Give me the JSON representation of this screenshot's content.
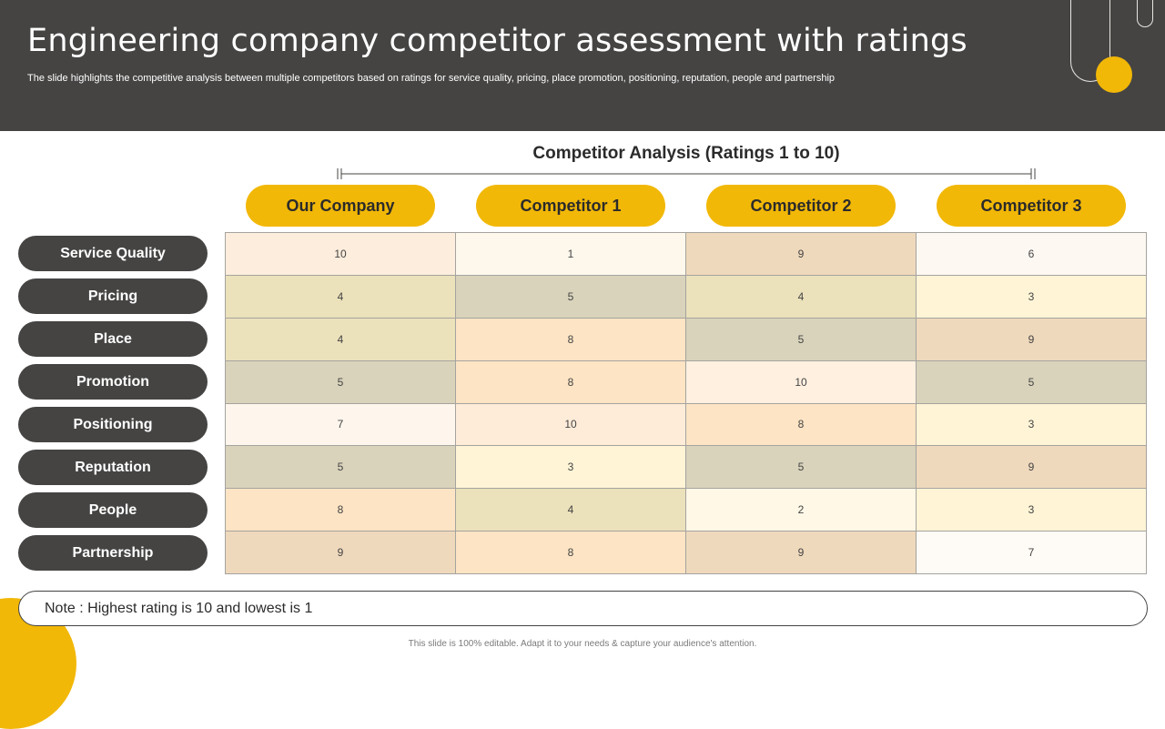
{
  "header": {
    "title": "Engineering company competitor assessment with ratings",
    "subtitle": "The slide highlights the competitive analysis between multiple competitors based on ratings for service quality, pricing, place promotion, positioning, reputation, people and partnership"
  },
  "analysis_title": "Competitor Analysis (Ratings 1 to 10)",
  "columns": [
    "Our Company",
    "Competitor 1",
    "Competitor 2",
    "Competitor 3"
  ],
  "rows": [
    {
      "label": "Service Quality",
      "values": [
        "10",
        "1",
        "9",
        "6"
      ]
    },
    {
      "label": "Pricing",
      "values": [
        "4",
        "5",
        "4",
        "3"
      ]
    },
    {
      "label": "Place",
      "values": [
        "4",
        "8",
        "5",
        "9"
      ]
    },
    {
      "label": "Promotion",
      "values": [
        "5",
        "8",
        "10",
        "5"
      ]
    },
    {
      "label": "Positioning",
      "values": [
        "7",
        "10",
        "8",
        "3"
      ]
    },
    {
      "label": "Reputation",
      "values": [
        "5",
        "3",
        "5",
        "9"
      ]
    },
    {
      "label": "People",
      "values": [
        "8",
        "4",
        "2",
        "3"
      ]
    },
    {
      "label": "Partnership",
      "values": [
        "9",
        "8",
        "9",
        "7"
      ]
    }
  ],
  "cell_colors": [
    [
      "#fdeddc",
      "#fef8ec",
      "#efd9bc",
      "#fef8f3"
    ],
    [
      "#ebe1bb",
      "#d9d3bb",
      "#ebe1bb",
      "#fff4d6"
    ],
    [
      "#ebe1bb",
      "#fde4c4",
      "#d9d3bb",
      "#efd9bc"
    ],
    [
      "#d9d3bb",
      "#fde4c4",
      "#fff0e0",
      "#d9d3bb"
    ],
    [
      "#fef5ec",
      "#feecd9",
      "#fde4c4",
      "#fff4d6"
    ],
    [
      "#d9d3bb",
      "#fff4d6",
      "#d9d3bb",
      "#efd9bc"
    ],
    [
      "#fde4c4",
      "#ebe1bb",
      "#fff8e6",
      "#fff4d6"
    ],
    [
      "#efd9bc",
      "#fde4c4",
      "#efd9bc",
      "#fefaf5"
    ]
  ],
  "note": "Note : Highest rating is 10 and lowest is 1",
  "footer": "This slide is 100% editable. Adapt it to your needs & capture your audience's attention.",
  "colors": {
    "accent": "#f2b807",
    "dark": "#454443"
  }
}
